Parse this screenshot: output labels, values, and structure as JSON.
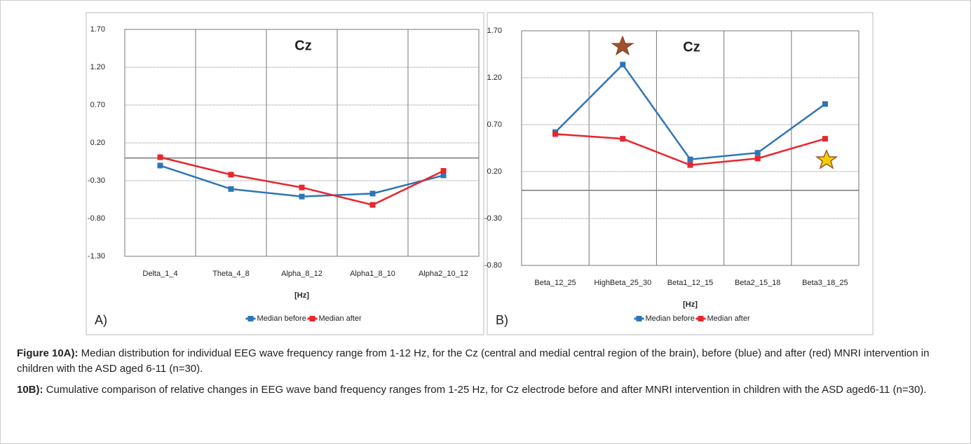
{
  "chart_data": [
    {
      "type": "line",
      "title": "Cz",
      "panel_label": "A)",
      "x_label": "[Hz]",
      "categories": [
        "Delta_1_4",
        "Theta_4_8",
        "Alpha_8_12",
        "Alpha1_8_10",
        "Alpha2_10_12"
      ],
      "series": [
        {
          "name": "Median before",
          "color": "#2e75b6",
          "values": [
            -0.1,
            -0.41,
            -0.51,
            -0.47,
            -0.23
          ]
        },
        {
          "name": "Median after",
          "color": "#e8262d",
          "values": [
            0.01,
            -0.22,
            -0.39,
            -0.62,
            -0.17
          ]
        }
      ],
      "ylim": [
        -1.3,
        1.7
      ],
      "yticks": [
        {
          "value": 1.7,
          "label": "1.70"
        },
        {
          "value": 1.2,
          "label": "1.20"
        },
        {
          "value": 0.7,
          "label": "0.70"
        },
        {
          "value": 0.2,
          "label": "0.20"
        },
        {
          "value": -0.3,
          "label": "-0.30"
        },
        {
          "value": -0.8,
          "label": "-0.80"
        },
        {
          "value": -1.3,
          "label": "-1.30"
        }
      ],
      "grid": true,
      "legend": "bottom"
    },
    {
      "type": "line",
      "title": "Cz",
      "panel_label": "B)",
      "x_label": "[Hz]",
      "categories": [
        "Beta_12_25",
        "HighBeta_25_30",
        "Beta1_12_15",
        "Beta2_15_18",
        "Beta3_18_25"
      ],
      "series": [
        {
          "name": "Median before",
          "color": "#2e75b6",
          "values": [
            0.62,
            1.34,
            0.33,
            0.4,
            0.92
          ]
        },
        {
          "name": "Median after",
          "color": "#e8262d",
          "values": [
            0.6,
            0.55,
            0.27,
            0.34,
            0.55
          ]
        }
      ],
      "ylim": [
        -0.8,
        1.7
      ],
      "yticks": [
        {
          "value": 1.7,
          "label": "1.70"
        },
        {
          "value": 1.2,
          "label": "1.20"
        },
        {
          "value": 0.7,
          "label": "0.70"
        },
        {
          "value": 0.2,
          "label": "0.20"
        },
        {
          "value": -0.3,
          "label": "-0.30"
        },
        {
          "value": -0.8,
          "label": "-0.80"
        }
      ],
      "grid": true,
      "legend": "bottom"
    }
  ],
  "caption": [
    {
      "bold": "Figure 10A):",
      "text": " Median distribution for individual EEG wave frequency range from 1-12 Hz, for the Cz (central and medial central region of the brain), before (blue) and after (red) MNRI intervention in children with the ASD aged 6-11 (n=30)."
    },
    {
      "bold": "10B):",
      "text": " Cumulative comparison of relative changes in EEG wave band frequency ranges from 1-25 Hz, for Cz electrode before and after MNRI intervention in children with the ASD aged6-11 (n=30)."
    }
  ]
}
